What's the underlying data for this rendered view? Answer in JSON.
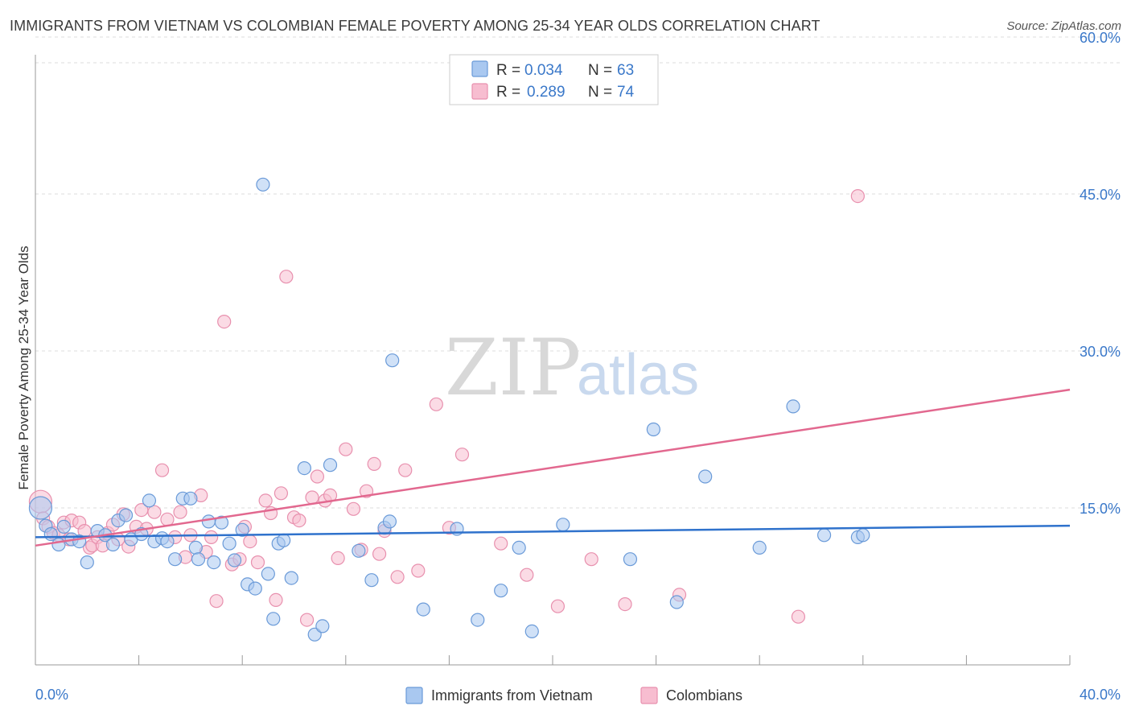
{
  "header": {
    "title": "IMMIGRANTS FROM VIETNAM VS COLOMBIAN FEMALE POVERTY AMONG 25-34 YEAR OLDS CORRELATION CHART",
    "source": "Source: ZipAtlas.com"
  },
  "watermark": {
    "zip": "ZIP",
    "atlas": "atlas"
  },
  "legend": {
    "r_label": "R =",
    "n_label": "N =",
    "rows": [
      {
        "r": "0.034",
        "n": "63"
      },
      {
        "r": "0.289",
        "n": "74"
      }
    ]
  },
  "colors": {
    "vietnam_fill": "#a9c8f0",
    "vietnam_stroke": "#6a9ad8",
    "vietnam_line": "#2f72cc",
    "colombia_fill": "#f7bdd0",
    "colombia_stroke": "#e890ae",
    "colombia_line": "#e2688f",
    "grid": "#dddddd",
    "axis_text": "#3a78c9"
  },
  "chart_data": {
    "type": "scatter",
    "title": "IMMIGRANTS FROM VIETNAM VS COLOMBIAN FEMALE POVERTY AMONG 25-34 YEAR OLDS CORRELATION CHART",
    "xlabel": "",
    "ylabel": "Female Poverty Among 25-34 Year Olds",
    "xlim": [
      0,
      40
    ],
    "ylim": [
      0,
      62
    ],
    "x_tick_labels": [
      {
        "value": 0,
        "label": "0.0%"
      },
      {
        "value": 40,
        "label": "40.0%"
      }
    ],
    "y_tick_labels": [
      {
        "value": 15,
        "label": "15.0%"
      },
      {
        "value": 30,
        "label": "30.0%"
      },
      {
        "value": 45,
        "label": "45.0%"
      },
      {
        "value": 60,
        "label": "60.0%"
      }
    ],
    "grid": "horizontal dashed",
    "legend_placement": "top-center",
    "series": [
      {
        "name": "Immigrants from Vietnam",
        "R": 0.034,
        "N": 63,
        "trend": [
          [
            0,
            12.2
          ],
          [
            40,
            13.3
          ]
        ],
        "points": [
          [
            0.2,
            15.0
          ],
          [
            0.4,
            13.3
          ],
          [
            0.6,
            12.5
          ],
          [
            0.9,
            11.5
          ],
          [
            1.1,
            13.2
          ],
          [
            1.4,
            12.0
          ],
          [
            1.7,
            11.8
          ],
          [
            2.0,
            9.8
          ],
          [
            2.4,
            12.8
          ],
          [
            2.7,
            12.4
          ],
          [
            3.0,
            11.5
          ],
          [
            3.2,
            13.8
          ],
          [
            3.5,
            14.3
          ],
          [
            3.7,
            12.0
          ],
          [
            4.1,
            12.5
          ],
          [
            4.4,
            15.7
          ],
          [
            4.6,
            11.8
          ],
          [
            4.9,
            12.1
          ],
          [
            5.1,
            11.8
          ],
          [
            5.4,
            10.1
          ],
          [
            5.7,
            15.9
          ],
          [
            6.0,
            15.9
          ],
          [
            6.2,
            11.2
          ],
          [
            6.3,
            10.1
          ],
          [
            6.7,
            13.7
          ],
          [
            6.9,
            9.8
          ],
          [
            7.2,
            13.6
          ],
          [
            7.5,
            11.6
          ],
          [
            7.7,
            10.0
          ],
          [
            8.0,
            12.9
          ],
          [
            8.2,
            7.7
          ],
          [
            8.5,
            7.3
          ],
          [
            8.8,
            45.9
          ],
          [
            9.0,
            8.7
          ],
          [
            9.2,
            4.4
          ],
          [
            9.4,
            11.6
          ],
          [
            9.6,
            11.9
          ],
          [
            9.9,
            8.3
          ],
          [
            10.4,
            18.8
          ],
          [
            10.8,
            2.9
          ],
          [
            11.1,
            3.7
          ],
          [
            11.4,
            19.1
          ],
          [
            12.5,
            10.9
          ],
          [
            13.0,
            8.1
          ],
          [
            13.5,
            13.1
          ],
          [
            13.7,
            13.7
          ],
          [
            13.8,
            29.1
          ],
          [
            15.0,
            5.3
          ],
          [
            16.3,
            13.0
          ],
          [
            17.1,
            4.3
          ],
          [
            18.0,
            7.1
          ],
          [
            18.7,
            11.2
          ],
          [
            19.2,
            3.2
          ],
          [
            20.4,
            13.4
          ],
          [
            23.0,
            10.1
          ],
          [
            23.9,
            22.5
          ],
          [
            24.8,
            6.0
          ],
          [
            25.9,
            18.0
          ],
          [
            28.0,
            11.2
          ],
          [
            29.3,
            24.7
          ],
          [
            30.5,
            12.4
          ],
          [
            31.8,
            12.2
          ],
          [
            32.0,
            12.4
          ]
        ]
      },
      {
        "name": "Colombians",
        "R": 0.289,
        "N": 74,
        "trend": [
          [
            0,
            11.4
          ],
          [
            40,
            26.3
          ]
        ],
        "points": [
          [
            0.2,
            15.6
          ],
          [
            0.3,
            14.0
          ],
          [
            0.5,
            13.2
          ],
          [
            0.7,
            12.6
          ],
          [
            0.9,
            12.4
          ],
          [
            1.1,
            13.6
          ],
          [
            1.3,
            12.0
          ],
          [
            1.4,
            13.8
          ],
          [
            1.7,
            13.6
          ],
          [
            1.9,
            12.8
          ],
          [
            2.1,
            11.2
          ],
          [
            2.2,
            11.4
          ],
          [
            2.4,
            12.2
          ],
          [
            2.6,
            11.4
          ],
          [
            2.8,
            12.6
          ],
          [
            3.0,
            13.4
          ],
          [
            3.2,
            12.0
          ],
          [
            3.4,
            14.4
          ],
          [
            3.6,
            11.3
          ],
          [
            3.9,
            13.2
          ],
          [
            4.1,
            14.8
          ],
          [
            4.3,
            13.0
          ],
          [
            4.6,
            14.6
          ],
          [
            4.9,
            18.6
          ],
          [
            5.1,
            13.9
          ],
          [
            5.4,
            12.2
          ],
          [
            5.6,
            14.6
          ],
          [
            5.8,
            10.3
          ],
          [
            6.0,
            12.4
          ],
          [
            6.4,
            16.2
          ],
          [
            6.6,
            10.8
          ],
          [
            6.8,
            12.2
          ],
          [
            7.0,
            6.1
          ],
          [
            7.3,
            32.8
          ],
          [
            7.6,
            9.6
          ],
          [
            7.9,
            10.1
          ],
          [
            8.1,
            13.2
          ],
          [
            8.3,
            11.8
          ],
          [
            8.6,
            9.8
          ],
          [
            8.9,
            15.7
          ],
          [
            9.1,
            14.5
          ],
          [
            9.3,
            6.2
          ],
          [
            9.5,
            16.4
          ],
          [
            9.7,
            37.1
          ],
          [
            10.0,
            14.1
          ],
          [
            10.2,
            13.8
          ],
          [
            10.5,
            4.3
          ],
          [
            10.7,
            16.0
          ],
          [
            10.9,
            18.0
          ],
          [
            11.2,
            15.7
          ],
          [
            11.4,
            16.2
          ],
          [
            11.7,
            10.2
          ],
          [
            12.0,
            20.6
          ],
          [
            12.3,
            14.9
          ],
          [
            12.6,
            11.0
          ],
          [
            12.8,
            16.6
          ],
          [
            13.1,
            19.2
          ],
          [
            13.3,
            10.6
          ],
          [
            13.5,
            12.8
          ],
          [
            14.0,
            8.4
          ],
          [
            14.3,
            18.6
          ],
          [
            14.8,
            9.0
          ],
          [
            15.5,
            24.9
          ],
          [
            16.0,
            13.1
          ],
          [
            16.5,
            20.1
          ],
          [
            17.1,
            54.8
          ],
          [
            18.0,
            11.6
          ],
          [
            19.0,
            8.6
          ],
          [
            20.2,
            5.6
          ],
          [
            21.5,
            10.1
          ],
          [
            22.8,
            5.8
          ],
          [
            24.9,
            6.7
          ],
          [
            29.5,
            4.6
          ],
          [
            31.8,
            44.8
          ]
        ]
      }
    ]
  }
}
